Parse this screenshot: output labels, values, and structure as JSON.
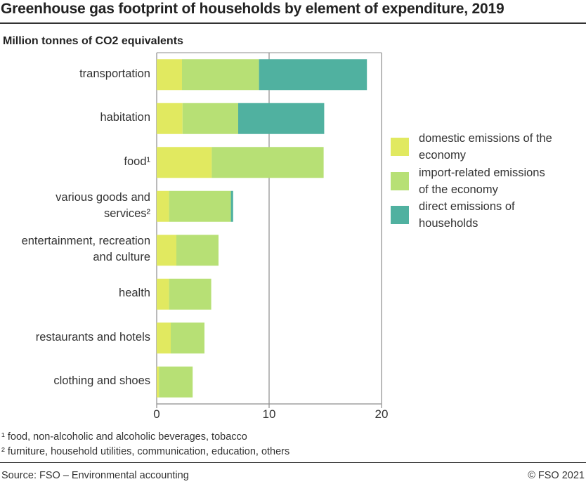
{
  "title": "Greenhouse gas footprint of households by element of expenditure, 2019",
  "footnotes": [
    "¹ food, non-alcoholic and alcoholic beverages, tobacco",
    "² furniture, household utilities, communication, education, others"
  ],
  "source": "Source: FSO – Environmental accounting",
  "copyright": "© FSO 2021",
  "chart_data": {
    "type": "bar",
    "orientation": "horizontal",
    "stacked": true,
    "title": "Greenhouse gas footprint of households by element of expenditure, 2019",
    "ylabel": "Million tonnes of CO2 equivalents",
    "xlim": [
      0,
      20
    ],
    "xticks": [
      "0",
      "10",
      "20"
    ],
    "grid": true,
    "legend_position": "right",
    "categories": [
      "transportation",
      "habitation",
      "food¹",
      "various goods and services²",
      "entertainment, recreation and culture",
      "health",
      "restaurants and hotels",
      "clothing and shoes"
    ],
    "category_lines": [
      [
        "transportation"
      ],
      [
        "habitation"
      ],
      [
        "food¹"
      ],
      [
        "various goods and",
        "services²"
      ],
      [
        "entertainment, recreation",
        "and culture"
      ],
      [
        "health"
      ],
      [
        "restaurants and hotels"
      ],
      [
        "clothing and shoes"
      ]
    ],
    "series": [
      {
        "name": "domestic emissions of the economy",
        "name_lines": [
          "domestic emissions of the",
          "economy"
        ],
        "color": "#e1e960",
        "values": [
          2.25,
          2.3,
          4.9,
          1.1,
          1.75,
          1.1,
          1.25,
          0.2
        ]
      },
      {
        "name": "import-related emissions of the economy",
        "name_lines": [
          "import-related emissions",
          "of the economy"
        ],
        "color": "#b7e075",
        "values": [
          6.85,
          4.95,
          9.95,
          5.5,
          3.75,
          3.75,
          3.0,
          3.0
        ]
      },
      {
        "name": "direct emissions of households",
        "name_lines": [
          "direct emissions of",
          "households"
        ],
        "color": "#50b1a0",
        "values": [
          9.6,
          7.65,
          0,
          0.2,
          0,
          0,
          0,
          0
        ]
      }
    ]
  }
}
